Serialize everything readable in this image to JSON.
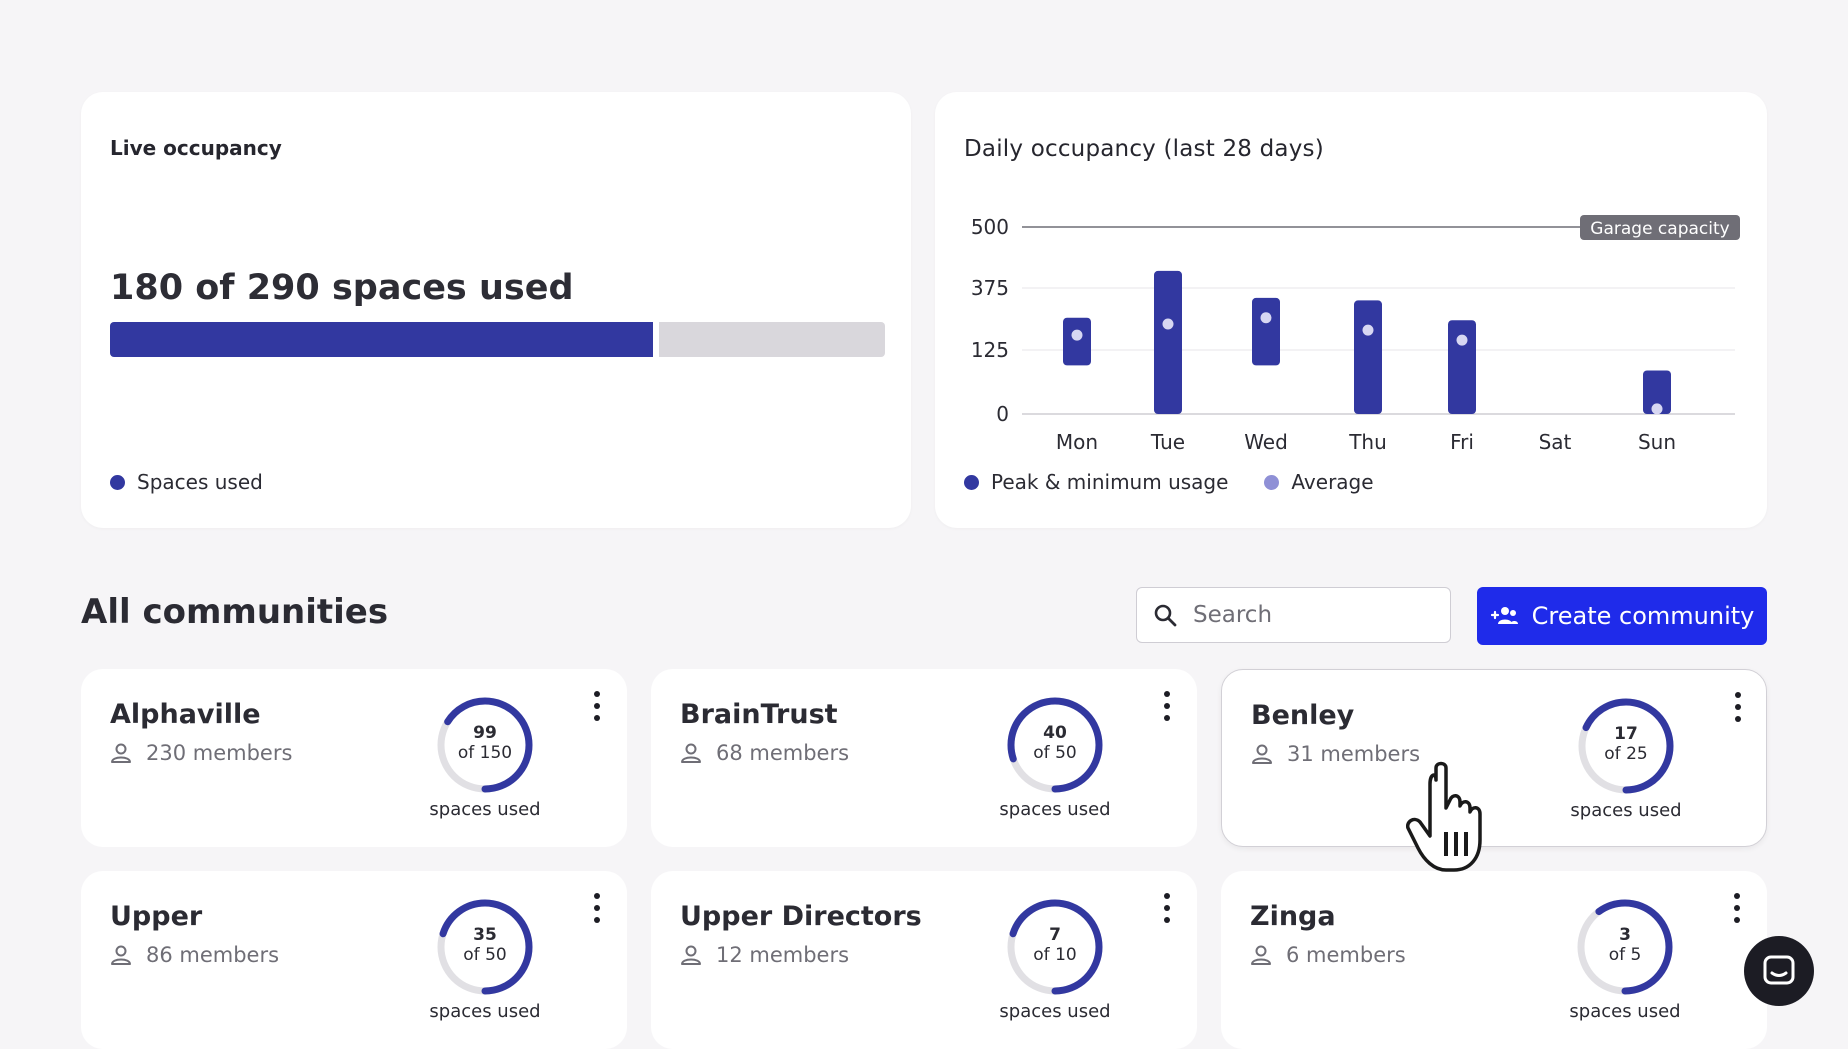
{
  "live_occupancy": {
    "title": "Live occupancy",
    "used_text": "180 of 290 spaces used",
    "used": 180,
    "capacity": 290,
    "legend_label": "Spaces used",
    "fill_color": "#3238a0",
    "track_color": "#d9d7dc"
  },
  "daily_occupancy": {
    "title": "Daily occupancy (last 28 days)",
    "capacity_label": "Garage capacity",
    "legend": [
      {
        "label": "Peak & minimum usage",
        "color": "#3238a0"
      },
      {
        "label": "Average",
        "color": "#8f90d6"
      }
    ]
  },
  "chart_data": {
    "type": "bar",
    "title": "Daily occupancy (last 28 days)",
    "categories": [
      "Mon",
      "Tue",
      "Wed",
      "Thu",
      "Fri",
      "Sat",
      "Sun"
    ],
    "yticks": [
      0,
      125,
      375,
      500
    ],
    "ylim": [
      0,
      500
    ],
    "capacity_line": 500,
    "series": [
      {
        "name": "Peak & minimum usage",
        "min": [
          95,
          0,
          95,
          0,
          0,
          null,
          0
        ],
        "max": [
          255,
          410,
          335,
          325,
          245,
          null,
          85
        ]
      },
      {
        "name": "Average",
        "values": [
          185,
          230,
          255,
          205,
          165,
          null,
          10
        ]
      }
    ],
    "legend_position": "bottom-left",
    "grid": true
  },
  "communities": {
    "title": "All communities",
    "search_placeholder": "Search",
    "create_label": "Create community",
    "caption": "spaces used",
    "items": [
      {
        "name": "Alphaville",
        "members": "230 members",
        "used": "99",
        "of": "of 150",
        "fraction": 0.66
      },
      {
        "name": "BrainTrust",
        "members": "68 members",
        "used": "40",
        "of": "of 50",
        "fraction": 0.8
      },
      {
        "name": "Benley",
        "members": "31 members",
        "used": "17",
        "of": "of 25",
        "fraction": 0.68
      },
      {
        "name": "Upper",
        "members": "86 members",
        "used": "35",
        "of": "of 50",
        "fraction": 0.7
      },
      {
        "name": "Upper Directors",
        "members": "12 members",
        "used": "7",
        "of": "of 10",
        "fraction": 0.7
      },
      {
        "name": "Zinga",
        "members": "6 members",
        "used": "3",
        "of": "of 5",
        "fraction": 0.6
      }
    ]
  },
  "colors": {
    "accent": "#1f2bea",
    "bar": "#3238a0",
    "ring_track": "#e1e0e4"
  }
}
